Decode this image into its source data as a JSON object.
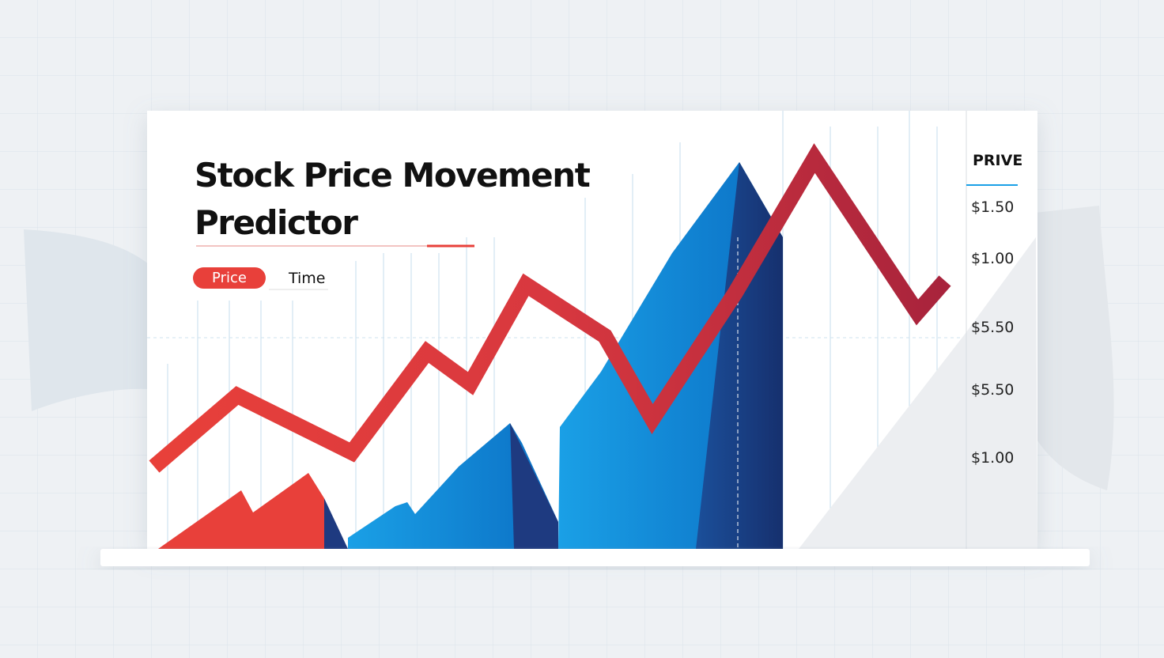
{
  "header": {
    "title_lines": [
      "Stock Price Movement",
      "Predictor"
    ]
  },
  "tabs": [
    "Price",
    "Time"
  ],
  "axis": {
    "header": "PRIVE",
    "labels": [
      "$1.50",
      "$1.00",
      "$5.50",
      "$5.50",
      "$1.00"
    ]
  }
}
